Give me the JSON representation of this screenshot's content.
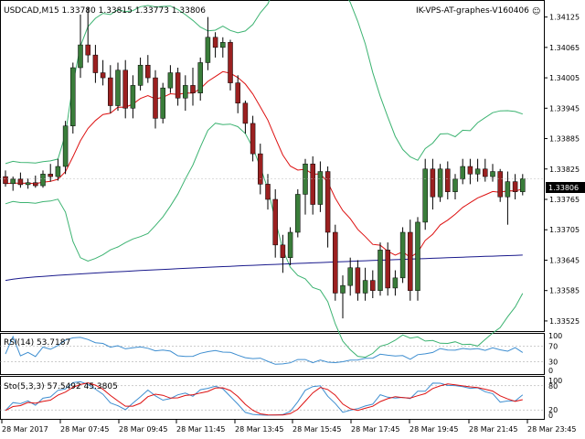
{
  "header": {
    "symbol_info": "USDCAD,M15  1.33780 1.33815 1.33773 1.33806",
    "expert_label": "IK-VPS-AT-graphes-V160406",
    "smiley": "☺"
  },
  "price_panel": {
    "current_price": "1.33806",
    "axis_labels": [
      "1.34125",
      "1.34065",
      "1.34005",
      "1.33945",
      "1.33885",
      "1.33825",
      "1.33765",
      "1.33705",
      "1.33645",
      "1.33585",
      "1.33525"
    ]
  },
  "rsi_panel": {
    "label": "RSI(14) 53.7187",
    "axis_labels": [
      "100",
      "70",
      "30",
      "0"
    ]
  },
  "stoch_panel": {
    "label": "Sto(5,3,3) 57.5492 45.3805",
    "axis_labels": [
      "100",
      "80",
      "20",
      "0"
    ]
  },
  "time_axis": [
    "28 Mar 2017",
    "28 Mar 07:45",
    "28 Mar 09:45",
    "28 Mar 11:45",
    "28 Mar 13:45",
    "28 Mar 15:45",
    "28 Mar 17:45",
    "28 Mar 19:45",
    "28 Mar 21:45",
    "28 Mar 23:45"
  ],
  "colors": {
    "bull": "#3a7d3a",
    "bear": "#9b2020",
    "bollinger": "#3cb371",
    "ma_red": "#dd1111",
    "ma_blue": "#1a1a8c",
    "rsi": "#3e8ed0",
    "stoch_main": "#3e8ed0",
    "stoch_signal": "#dd1111",
    "price_tag": "#000000"
  },
  "chart_data": {
    "type": "candlestick",
    "symbol": "USDCAD",
    "timeframe": "M15",
    "last_ohlc": {
      "open": 1.3378,
      "high": 1.33815,
      "low": 1.33773,
      "close": 1.33806
    },
    "candles": [
      {
        "o": 1.3381,
        "h": 1.33822,
        "l": 1.3379,
        "c": 1.33796
      },
      {
        "o": 1.33796,
        "h": 1.3381,
        "l": 1.33782,
        "c": 1.33805
      },
      {
        "o": 1.33805,
        "h": 1.33818,
        "l": 1.33788,
        "c": 1.33794
      },
      {
        "o": 1.33794,
        "h": 1.33806,
        "l": 1.33786,
        "c": 1.33798
      },
      {
        "o": 1.33798,
        "h": 1.33812,
        "l": 1.33788,
        "c": 1.33792
      },
      {
        "o": 1.33792,
        "h": 1.33822,
        "l": 1.33788,
        "c": 1.33815
      },
      {
        "o": 1.33815,
        "h": 1.33835,
        "l": 1.338,
        "c": 1.3381
      },
      {
        "o": 1.3381,
        "h": 1.33845,
        "l": 1.33802,
        "c": 1.3383
      },
      {
        "o": 1.3383,
        "h": 1.3392,
        "l": 1.33815,
        "c": 1.3391
      },
      {
        "o": 1.3391,
        "h": 1.34035,
        "l": 1.33895,
        "c": 1.34025
      },
      {
        "o": 1.34025,
        "h": 1.3413,
        "l": 1.34005,
        "c": 1.3407
      },
      {
        "o": 1.3407,
        "h": 1.34145,
        "l": 1.34035,
        "c": 1.3405
      },
      {
        "o": 1.3405,
        "h": 1.3407,
        "l": 1.33995,
        "c": 1.34015
      },
      {
        "o": 1.34015,
        "h": 1.3404,
        "l": 1.3399,
        "c": 1.34005
      },
      {
        "o": 1.34005,
        "h": 1.3403,
        "l": 1.33935,
        "c": 1.3395
      },
      {
        "o": 1.3395,
        "h": 1.34035,
        "l": 1.3394,
        "c": 1.3402
      },
      {
        "o": 1.3402,
        "h": 1.3404,
        "l": 1.33925,
        "c": 1.33945
      },
      {
        "o": 1.33945,
        "h": 1.3401,
        "l": 1.33925,
        "c": 1.3399
      },
      {
        "o": 1.3399,
        "h": 1.34045,
        "l": 1.3398,
        "c": 1.3403
      },
      {
        "o": 1.3403,
        "h": 1.3405,
        "l": 1.33995,
        "c": 1.34005
      },
      {
        "o": 1.34005,
        "h": 1.3402,
        "l": 1.33905,
        "c": 1.33925
      },
      {
        "o": 1.33925,
        "h": 1.33995,
        "l": 1.33915,
        "c": 1.33985
      },
      {
        "o": 1.33985,
        "h": 1.3403,
        "l": 1.33975,
        "c": 1.34015
      },
      {
        "o": 1.34015,
        "h": 1.34025,
        "l": 1.3395,
        "c": 1.33965
      },
      {
        "o": 1.33965,
        "h": 1.3401,
        "l": 1.3394,
        "c": 1.3399
      },
      {
        "o": 1.3399,
        "h": 1.34025,
        "l": 1.3395,
        "c": 1.33975
      },
      {
        "o": 1.33975,
        "h": 1.34045,
        "l": 1.3396,
        "c": 1.34035
      },
      {
        "o": 1.34035,
        "h": 1.34125,
        "l": 1.3402,
        "c": 1.34085
      },
      {
        "o": 1.34085,
        "h": 1.34095,
        "l": 1.34045,
        "c": 1.34065
      },
      {
        "o": 1.34065,
        "h": 1.34085,
        "l": 1.34045,
        "c": 1.34075
      },
      {
        "o": 1.34075,
        "h": 1.3408,
        "l": 1.3398,
        "c": 1.33995
      },
      {
        "o": 1.33995,
        "h": 1.3401,
        "l": 1.33935,
        "c": 1.33955
      },
      {
        "o": 1.33955,
        "h": 1.3396,
        "l": 1.33895,
        "c": 1.33915
      },
      {
        "o": 1.33915,
        "h": 1.3393,
        "l": 1.3384,
        "c": 1.33855
      },
      {
        "o": 1.33855,
        "h": 1.33875,
        "l": 1.33775,
        "c": 1.33795
      },
      {
        "o": 1.33795,
        "h": 1.33815,
        "l": 1.33745,
        "c": 1.33765
      },
      {
        "o": 1.33765,
        "h": 1.33785,
        "l": 1.3365,
        "c": 1.33675
      },
      {
        "o": 1.33675,
        "h": 1.33695,
        "l": 1.3362,
        "c": 1.3365
      },
      {
        "o": 1.3365,
        "h": 1.3371,
        "l": 1.33635,
        "c": 1.337
      },
      {
        "o": 1.337,
        "h": 1.33785,
        "l": 1.3369,
        "c": 1.33775
      },
      {
        "o": 1.33775,
        "h": 1.33845,
        "l": 1.33735,
        "c": 1.33835
      },
      {
        "o": 1.33835,
        "h": 1.3385,
        "l": 1.33735,
        "c": 1.33755
      },
      {
        "o": 1.33755,
        "h": 1.3384,
        "l": 1.3374,
        "c": 1.3382
      },
      {
        "o": 1.3382,
        "h": 1.3383,
        "l": 1.3367,
        "c": 1.337
      },
      {
        "o": 1.337,
        "h": 1.33715,
        "l": 1.33565,
        "c": 1.3358
      },
      {
        "o": 1.3358,
        "h": 1.33615,
        "l": 1.3353,
        "c": 1.33595
      },
      {
        "o": 1.33595,
        "h": 1.3365,
        "l": 1.33575,
        "c": 1.3363
      },
      {
        "o": 1.3363,
        "h": 1.33645,
        "l": 1.33565,
        "c": 1.3358
      },
      {
        "o": 1.3358,
        "h": 1.3363,
        "l": 1.33565,
        "c": 1.33605
      },
      {
        "o": 1.33605,
        "h": 1.33625,
        "l": 1.3357,
        "c": 1.33585
      },
      {
        "o": 1.33585,
        "h": 1.3368,
        "l": 1.33575,
        "c": 1.33665
      },
      {
        "o": 1.33665,
        "h": 1.3368,
        "l": 1.33575,
        "c": 1.3359
      },
      {
        "o": 1.3359,
        "h": 1.33625,
        "l": 1.33575,
        "c": 1.3361
      },
      {
        "o": 1.3361,
        "h": 1.3371,
        "l": 1.336,
        "c": 1.337
      },
      {
        "o": 1.337,
        "h": 1.33725,
        "l": 1.33565,
        "c": 1.33585
      },
      {
        "o": 1.33585,
        "h": 1.3373,
        "l": 1.33565,
        "c": 1.3372
      },
      {
        "o": 1.3372,
        "h": 1.33845,
        "l": 1.33705,
        "c": 1.33825
      },
      {
        "o": 1.33825,
        "h": 1.33845,
        "l": 1.33745,
        "c": 1.3377
      },
      {
        "o": 1.3377,
        "h": 1.33835,
        "l": 1.3376,
        "c": 1.33825
      },
      {
        "o": 1.33825,
        "h": 1.3384,
        "l": 1.33765,
        "c": 1.3378
      },
      {
        "o": 1.3378,
        "h": 1.33815,
        "l": 1.33765,
        "c": 1.33805
      },
      {
        "o": 1.33805,
        "h": 1.33845,
        "l": 1.33795,
        "c": 1.3383
      },
      {
        "o": 1.3383,
        "h": 1.33845,
        "l": 1.33795,
        "c": 1.33815
      },
      {
        "o": 1.33815,
        "h": 1.33845,
        "l": 1.338,
        "c": 1.33825
      },
      {
        "o": 1.33825,
        "h": 1.33845,
        "l": 1.338,
        "c": 1.3381
      },
      {
        "o": 1.3381,
        "h": 1.33835,
        "l": 1.338,
        "c": 1.3382
      },
      {
        "o": 1.3382,
        "h": 1.33825,
        "l": 1.3376,
        "c": 1.3377
      },
      {
        "o": 1.3377,
        "h": 1.3382,
        "l": 1.33715,
        "c": 1.338
      },
      {
        "o": 1.338,
        "h": 1.33815,
        "l": 1.33765,
        "c": 1.3378
      },
      {
        "o": 1.3378,
        "h": 1.33815,
        "l": 1.33773,
        "c": 1.33806
      }
    ],
    "y_range": [
      1.33505,
      1.34155
    ],
    "rsi": {
      "period": 14,
      "last": 53.7187,
      "levels": [
        70,
        30
      ]
    },
    "stochastic": {
      "params": "5,3,3",
      "main": 57.5492,
      "signal": 45.3805,
      "levels": [
        80,
        20
      ]
    }
  }
}
